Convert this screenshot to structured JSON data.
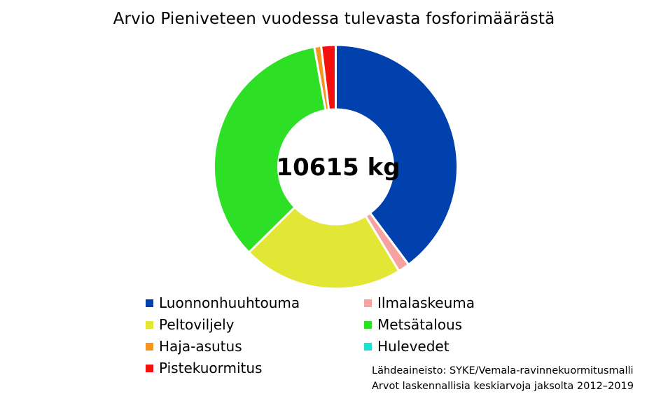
{
  "chart_data": {
    "type": "pie",
    "title": "Arvio Pieniveteen vuodessa tulevasta fosforimäärästä",
    "center_label": "10615 kg",
    "donut": true,
    "categories": [
      "Luonnonhuuhtouma",
      "Ilmalaskeuma",
      "Peltoviljely",
      "Metsätalous",
      "Haja-asutus",
      "Hulevedet",
      "Pistekuormitus"
    ],
    "values": [
      39.4,
      1.5,
      21.1,
      34.2,
      0.9,
      0.0,
      1.9
    ],
    "colors": [
      "#0041AE",
      "#F7A1A1",
      "#E2E635",
      "#2EE025",
      "#F7941D",
      "#1BE0CF",
      "#F51010"
    ],
    "legend_position": "bottom",
    "source_lines": [
      "Lähdeaineisto: SYKE/Vemala-ravinnekuormitusmalli",
      "Arvot laskennallisia keskiarvoja jaksolta 2012–2019"
    ]
  }
}
